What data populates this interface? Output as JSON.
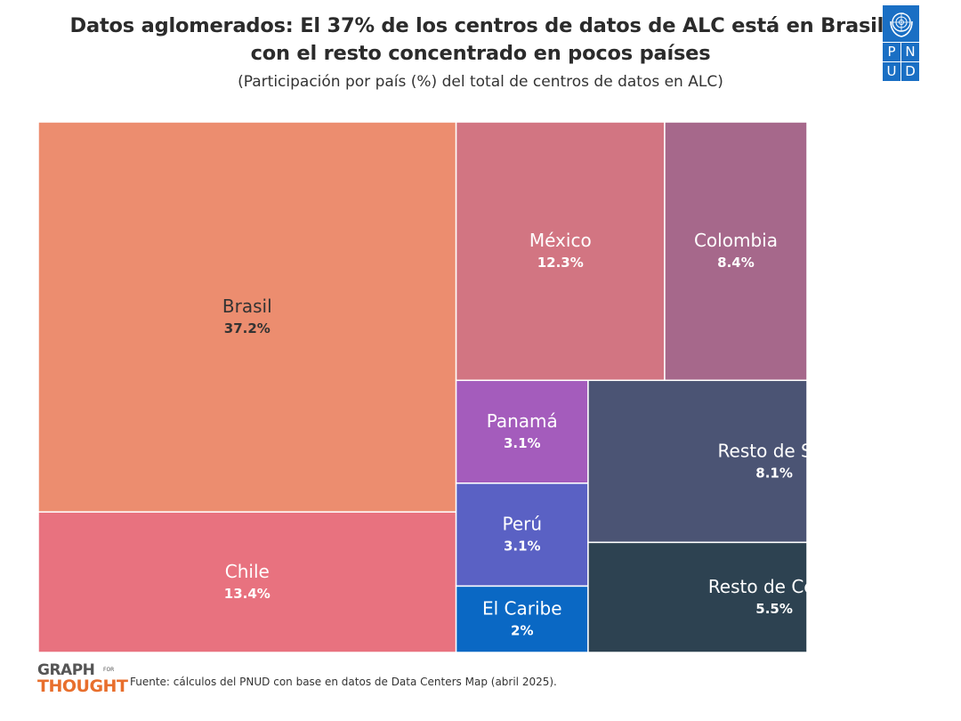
{
  "header": {
    "title": "Datos aglomerados: El 37% de los centros de datos de ALC está en Brasil, con el resto concentrado en pocos países",
    "subtitle": "(Participación por país (%) del total de centros de datos en ALC)"
  },
  "logo": {
    "letters": [
      "P",
      "N",
      "U",
      "D"
    ]
  },
  "footer": {
    "brand_line1": "GRAPH",
    "brand_for": "FOR",
    "brand_line2": "THOUGHT",
    "source": "Fuente: cálculos del PNUD con base en datos de Data Centers Map (abril 2025)."
  },
  "chart_data": {
    "type": "treemap",
    "title": "Datos aglomerados: El 37% de los centros de datos de ALC está en Brasil, con el resto concentrado en pocos países",
    "subtitle": "(Participación por país (%) del total de centros de datos en ALC)",
    "unit": "%",
    "items": [
      {
        "name": "Brasil",
        "label": "37.2%",
        "value": 37.2,
        "color": "#ec8d6f"
      },
      {
        "name": "Chile",
        "label": "13.4%",
        "value": 13.4,
        "color": "#e8727f"
      },
      {
        "name": "México",
        "label": "12.3%",
        "value": 12.3,
        "color": "#d27582"
      },
      {
        "name": "Colombia",
        "label": "8.4%",
        "value": 8.4,
        "color": "#a6688b"
      },
      {
        "name": "Resto de Sur",
        "label": "8.1%",
        "value": 8.1,
        "color": "#4b5474"
      },
      {
        "name": "Resto de Centr",
        "label": "5.5%",
        "value": 5.5,
        "color": "#2d4251"
      },
      {
        "name": "Panamá",
        "label": "3.1%",
        "value": 3.1,
        "color": "#a45cbc"
      },
      {
        "name": "Perú",
        "label": "3.1%",
        "value": 3.1,
        "color": "#5a61c4"
      },
      {
        "name": "El Caribe",
        "label": "2%",
        "value": 2,
        "color": "#0a68c4"
      }
    ]
  }
}
